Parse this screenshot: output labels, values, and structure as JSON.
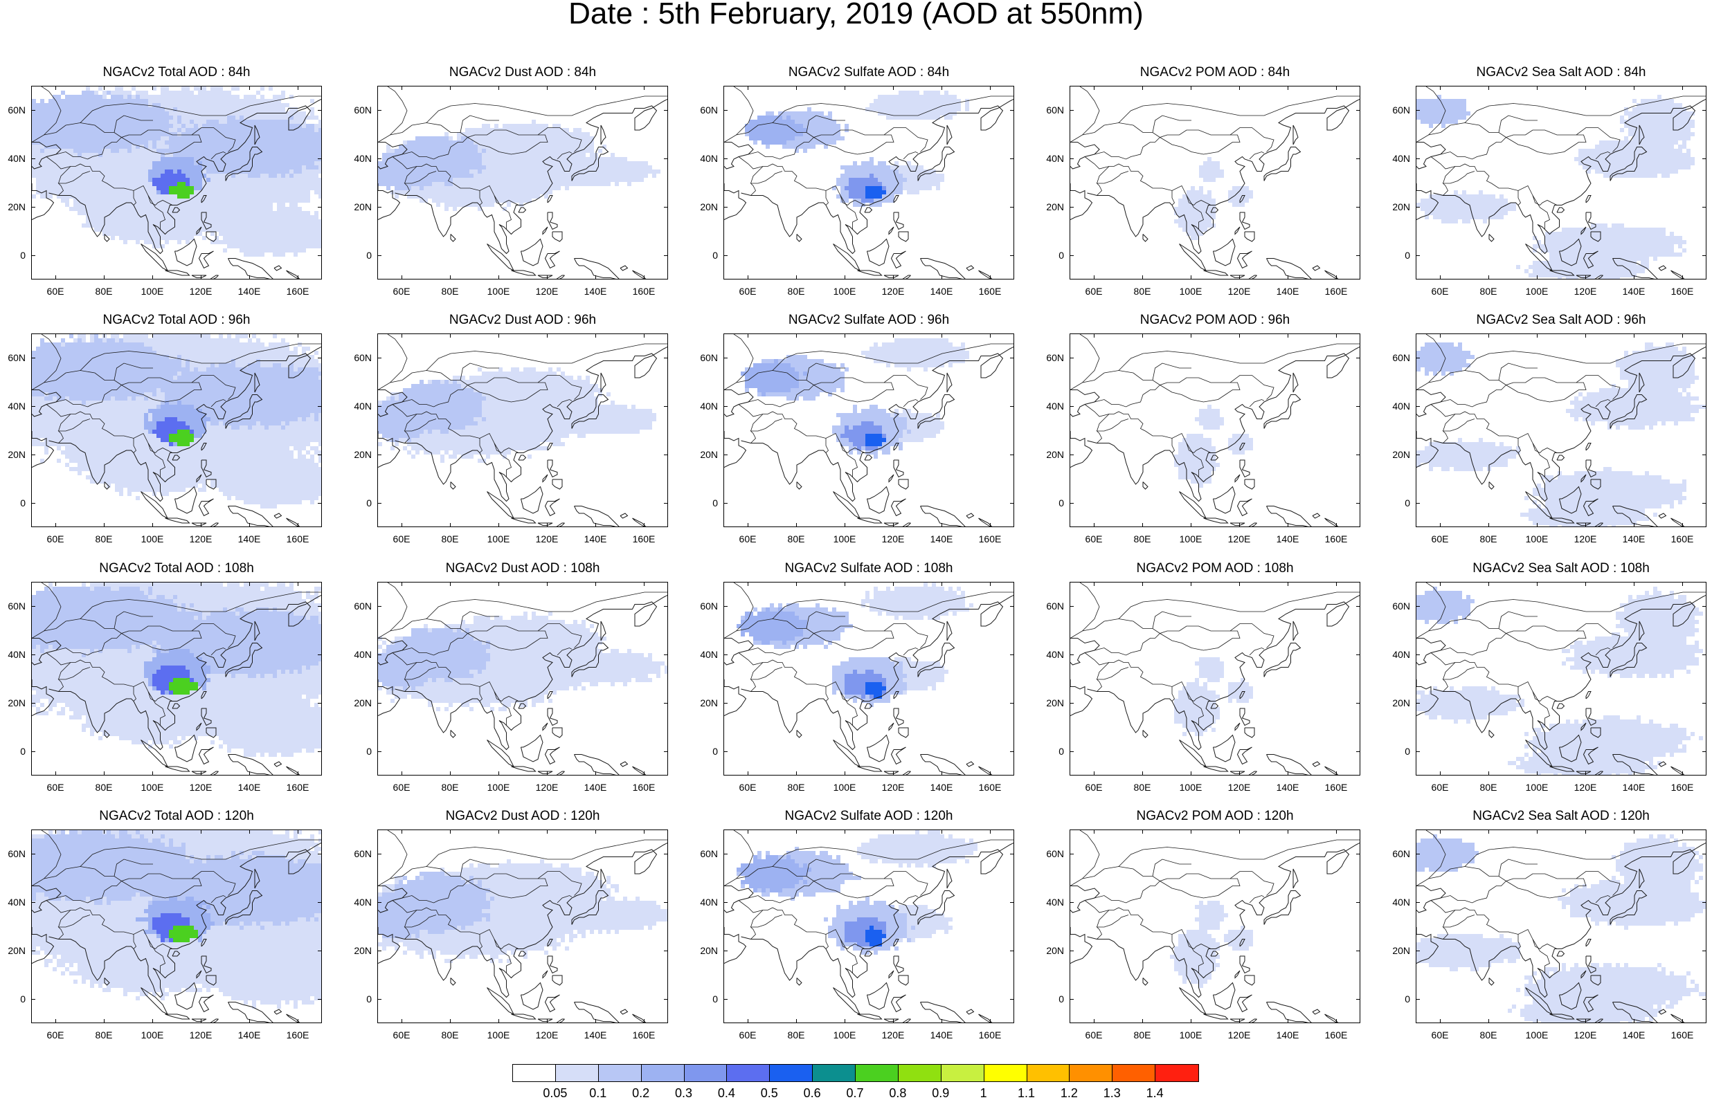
{
  "title": "Date : 5th February, 2019 (AOD at 550nm)",
  "lat_labels": [
    "60N",
    "40N",
    "20N",
    "0"
  ],
  "lon_labels": [
    "60E",
    "80E",
    "100E",
    "120E",
    "140E",
    "160E"
  ],
  "panels": [
    {
      "row": 0,
      "col": 0,
      "title": "NGACv2 Total AOD : 84h",
      "species": "total",
      "hour": 84
    },
    {
      "row": 0,
      "col": 1,
      "title": "NGACv2 Dust AOD : 84h",
      "species": "dust",
      "hour": 84
    },
    {
      "row": 0,
      "col": 2,
      "title": "NGACv2 Sulfate AOD : 84h",
      "species": "sulfate",
      "hour": 84
    },
    {
      "row": 0,
      "col": 3,
      "title": "NGACv2 POM AOD : 84h",
      "species": "pom",
      "hour": 84
    },
    {
      "row": 0,
      "col": 4,
      "title": "NGACv2 Sea Salt AOD : 84h",
      "species": "seasalt",
      "hour": 84
    },
    {
      "row": 1,
      "col": 0,
      "title": "NGACv2 Total AOD : 96h",
      "species": "total",
      "hour": 96
    },
    {
      "row": 1,
      "col": 1,
      "title": "NGACv2 Dust AOD : 96h",
      "species": "dust",
      "hour": 96
    },
    {
      "row": 1,
      "col": 2,
      "title": "NGACv2 Sulfate AOD : 96h",
      "species": "sulfate",
      "hour": 96
    },
    {
      "row": 1,
      "col": 3,
      "title": "NGACv2 POM AOD : 96h",
      "species": "pom",
      "hour": 96
    },
    {
      "row": 1,
      "col": 4,
      "title": "NGACv2 Sea Salt AOD : 96h",
      "species": "seasalt",
      "hour": 96
    },
    {
      "row": 2,
      "col": 0,
      "title": "NGACv2 Total AOD : 108h",
      "species": "total",
      "hour": 108
    },
    {
      "row": 2,
      "col": 1,
      "title": "NGACv2 Dust AOD : 108h",
      "species": "dust",
      "hour": 108
    },
    {
      "row": 2,
      "col": 2,
      "title": "NGACv2 Sulfate AOD : 108h",
      "species": "sulfate",
      "hour": 108
    },
    {
      "row": 2,
      "col": 3,
      "title": "NGACv2 POM AOD : 108h",
      "species": "pom",
      "hour": 108
    },
    {
      "row": 2,
      "col": 4,
      "title": "NGACv2 Sea Salt AOD : 108h",
      "species": "seasalt",
      "hour": 108
    },
    {
      "row": 3,
      "col": 0,
      "title": "NGACv2 Total AOD : 120h",
      "species": "total",
      "hour": 120
    },
    {
      "row": 3,
      "col": 1,
      "title": "NGACv2 Dust AOD : 120h",
      "species": "dust",
      "hour": 120
    },
    {
      "row": 3,
      "col": 2,
      "title": "NGACv2 Sulfate AOD : 120h",
      "species": "sulfate",
      "hour": 120
    },
    {
      "row": 3,
      "col": 3,
      "title": "NGACv2 POM AOD : 120h",
      "species": "pom",
      "hour": 120
    },
    {
      "row": 3,
      "col": 4,
      "title": "NGACv2 Sea Salt  AOD : 120h",
      "species": "seasalt",
      "hour": 120
    }
  ],
  "colorbar": {
    "labels": [
      "0.05",
      "0.1",
      "0.2",
      "0.3",
      "0.4",
      "0.5",
      "0.6",
      "0.7",
      "0.8",
      "0.9",
      "1",
      "1.1",
      "1.2",
      "1.3",
      "1.4"
    ],
    "colors": [
      "#ffffff",
      "#d6def8",
      "#b8c7f5",
      "#9db2f2",
      "#7f97ee",
      "#5c6ef0",
      "#1a60f0",
      "#0c8f8f",
      "#4bd020",
      "#90e010",
      "#c8f040",
      "#ffff00",
      "#ffc000",
      "#ff9000",
      "#ff6000",
      "#ff2010"
    ]
  }
}
